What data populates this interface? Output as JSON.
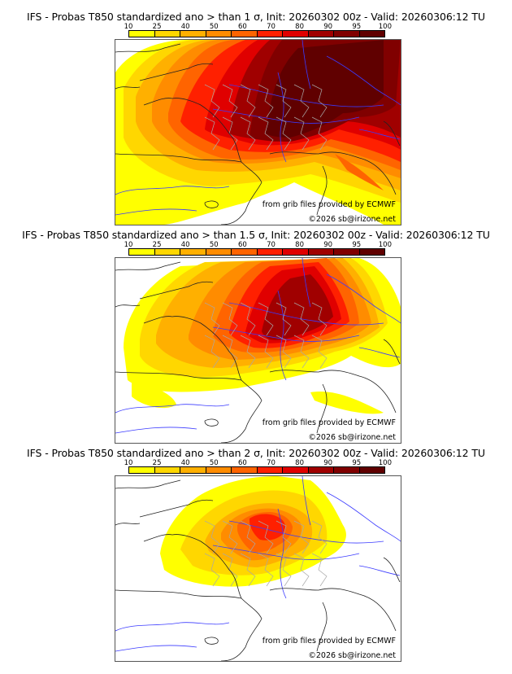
{
  "colorbar": {
    "labels": [
      "10",
      "25",
      "40",
      "50",
      "60",
      "70",
      "80",
      "90",
      "95",
      "100"
    ],
    "colors": [
      "#ffff00",
      "#ffd700",
      "#ffb000",
      "#ff8c00",
      "#ff6400",
      "#ff2000",
      "#e00000",
      "#a00000",
      "#800000",
      "#600000"
    ]
  },
  "panels": [
    {
      "title": "IFS - Probas T850  standardized ano > than 1 σ, Init: 20260302 00z - Valid: 20260306:12 TU",
      "threshold": "1 σ"
    },
    {
      "title": "IFS - Probas T850  standardized ano > than 1.5 σ, Init: 20260302 00z - Valid: 20260306:12 TU",
      "threshold": "1.5 σ"
    },
    {
      "title": "IFS - Probas T850  standardized ano > than 2 σ, Init: 20260302 00z - Valid: 20260306:12 TU",
      "threshold": "2 σ"
    }
  ],
  "credits": {
    "source": "from grib files provided by ECMWF",
    "copyright": "©2026 sb@irizone.net"
  }
}
